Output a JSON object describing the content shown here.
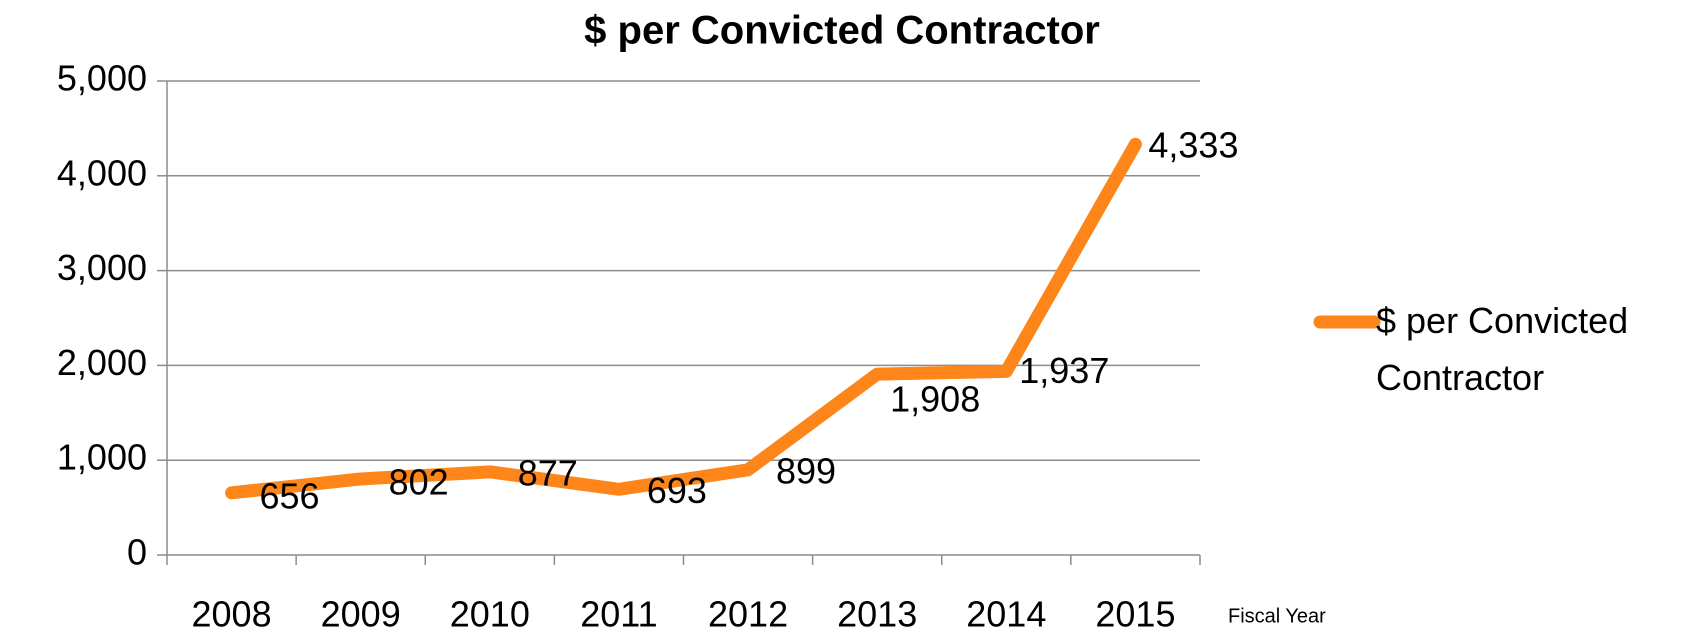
{
  "chart_data": {
    "type": "line",
    "title": "$ per Convicted Contractor",
    "x_label": "Fiscal Year",
    "categories": [
      "2008",
      "2009",
      "2010",
      "2011",
      "2012",
      "2013",
      "2014",
      "2015"
    ],
    "series": [
      {
        "name": "$ per Convicted Contractor",
        "color": "#fd8519",
        "values": [
          656,
          802,
          877,
          693,
          899,
          1908,
          1937,
          4333
        ],
        "value_labels": [
          "656",
          "802",
          "877",
          "693",
          "899",
          "1,908",
          "1,937",
          "4,333"
        ]
      }
    ],
    "ylim": [
      0,
      5000
    ],
    "yticks": [
      0,
      {
        "value": 1000,
        "label": "1,000"
      },
      {
        "value": 2000,
        "label": "2,000"
      },
      {
        "value": 3000,
        "label": "3,000"
      },
      {
        "value": 4000,
        "label": "4,000"
      },
      {
        "value": 5000,
        "label": "5,000"
      }
    ],
    "grid": true,
    "legend": "right"
  }
}
